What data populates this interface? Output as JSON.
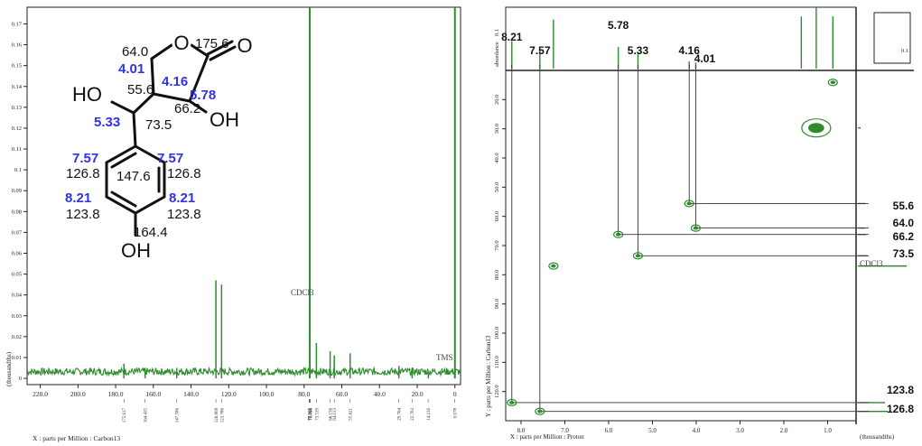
{
  "chart_data": [
    {
      "type": "line",
      "name": "carbon13-spectrum",
      "xlabel": "X : parts per Million : Carbon13",
      "ylabel": "(thousandths)",
      "x_ticks": [
        "220.0",
        "200.0",
        "180.0",
        "160.0",
        "140.0",
        "120.0",
        "100.0",
        "80.0",
        "60.0",
        "40.0",
        "20.0",
        "0"
      ],
      "y_ticks": [
        "0.17",
        "0.16",
        "0.15",
        "0.14",
        "0.13",
        "0.12",
        "0.11",
        "0.1",
        "0.09",
        "0.08",
        "0.07",
        "0.06",
        "0.05",
        "0.04",
        "0.03",
        "0.02",
        "0.01",
        "0"
      ],
      "xlim": [
        227,
        -3
      ],
      "ylim": [
        -0.003,
        0.178
      ],
      "peaks": [
        {
          "x": 175.6,
          "y": 0.007
        },
        {
          "x": 164.4,
          "y": 0.005
        },
        {
          "x": 147.6,
          "y": 0.005
        },
        {
          "x": 126.8,
          "y": 0.047
        },
        {
          "x": 123.8,
          "y": 0.045
        },
        {
          "x": 77.0,
          "y": 0.178
        },
        {
          "x": 73.5,
          "y": 0.017
        },
        {
          "x": 66.2,
          "y": 0.013
        },
        {
          "x": 64.0,
          "y": 0.011
        },
        {
          "x": 55.6,
          "y": 0.012
        },
        {
          "x": 29.7,
          "y": 0.006
        },
        {
          "x": 22.7,
          "y": 0.005
        },
        {
          "x": 14.1,
          "y": 0.003
        },
        {
          "x": 0.0,
          "y": 0.178
        }
      ],
      "annotations": [
        "CDCl3",
        "TMS"
      ],
      "peak_labels": [
        "175.617",
        "164.435",
        "147.586",
        "126.808",
        "123.786",
        "77.362",
        "77.045",
        "76.728",
        "73.539",
        "66.156",
        "64.013",
        "55.621",
        "29.764",
        "22.763",
        "14.216",
        "0.078"
      ]
    },
    {
      "type": "scatter",
      "name": "hsqc-2d",
      "xlabel": "X : parts per Million : Proton",
      "ylabel": "Y : parts per Million : Carbon13",
      "corner_label": "(thousandths)",
      "top_axis_label": "abundance",
      "top_axis_ticks": [
        "0.1"
      ],
      "right_axis_ticks": [
        "0.1"
      ],
      "x_ticks": [
        "8.0",
        "7.0",
        "6.0",
        "5.0",
        "4.0",
        "3.0",
        "2.0",
        "1.0"
      ],
      "y_ticks": [
        "20.0",
        "30.0",
        "40.0",
        "50.0",
        "60.0",
        "70.0",
        "80.0",
        "90.0",
        "100.0",
        "110.0",
        "120.0"
      ],
      "xlim": [
        8.35,
        0.35
      ],
      "ylim": [
        10,
        130
      ],
      "cross_peaks": [
        {
          "h": 8.21,
          "c": 123.8
        },
        {
          "h": 7.57,
          "c": 126.8
        },
        {
          "h": 5.78,
          "c": 66.2
        },
        {
          "h": 5.33,
          "c": 73.5
        },
        {
          "h": 4.16,
          "c": 55.6
        },
        {
          "h": 4.01,
          "c": 64.0
        },
        {
          "h": 7.26,
          "c": 77.0
        },
        {
          "h": 1.26,
          "c": 29.7
        },
        {
          "h": 0.88,
          "c": 14.1
        }
      ],
      "h_labels": [
        "8.21",
        "7.57",
        "5.78",
        "5.33",
        "4.16",
        "4.01"
      ],
      "c_labels": [
        "55.6",
        "64.0",
        "66.2",
        "73.5",
        "123.8",
        "126.8"
      ],
      "annotations": [
        "CDCl3"
      ]
    }
  ],
  "structure": {
    "atoms": {
      "ring_o": "O",
      "carbonyl_o": "O",
      "oh_right": "OH",
      "oh_left": "HO",
      "oh_bottom": "OH"
    },
    "carbon_shifts": [
      "175.6",
      "64.0",
      "55.6",
      "66.2",
      "73.5",
      "147.6",
      "126.8",
      "126.8",
      "123.8",
      "123.8",
      "164.4"
    ],
    "proton_shifts": [
      "4.01",
      "4.16",
      "5.78",
      "5.33",
      "7.57",
      "7.57",
      "8.21",
      "8.21"
    ],
    "colors": {
      "proton": "#3232e6",
      "carbon": "#111111"
    }
  },
  "colors": {
    "spectrum": "#2e8b2e",
    "axis": "#222222",
    "guide": "#333333"
  }
}
